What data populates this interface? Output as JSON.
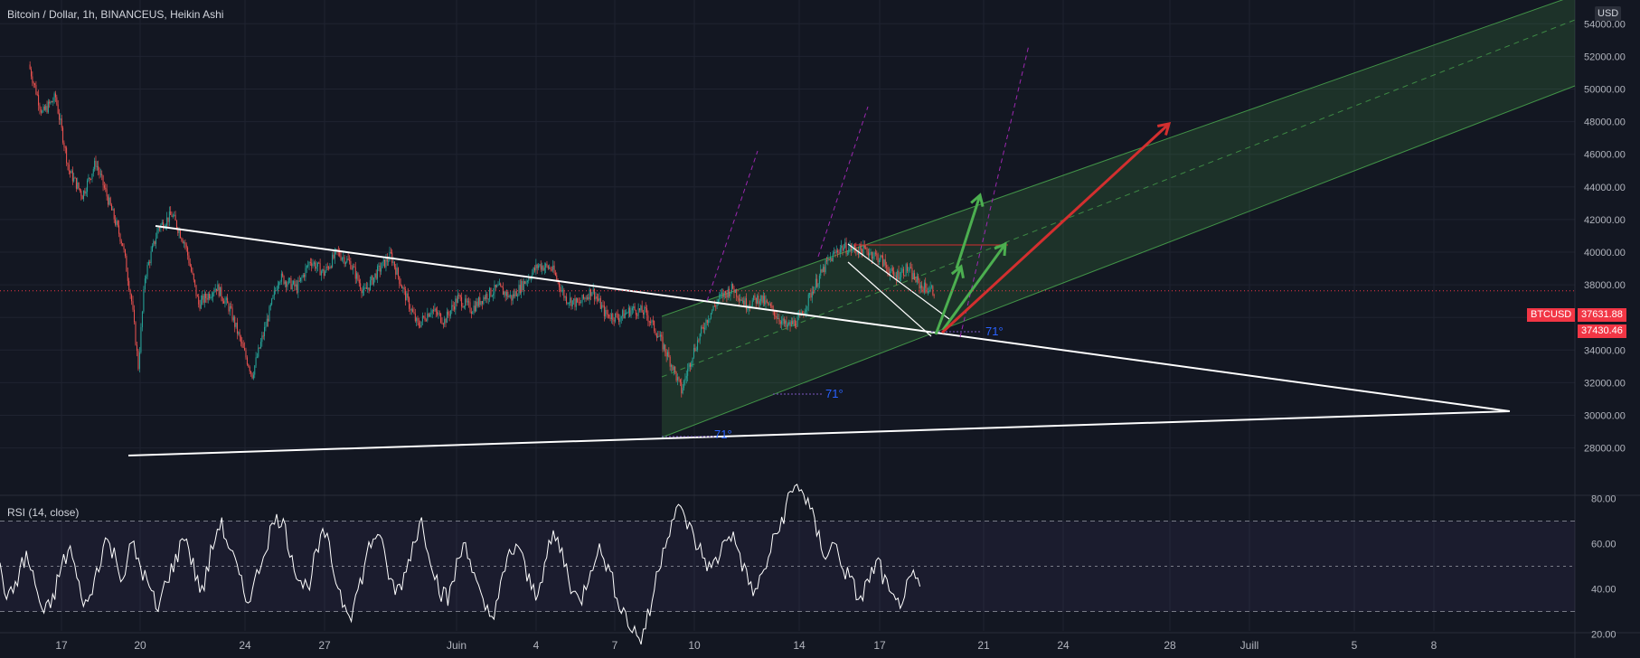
{
  "header": {
    "symbol_title": "Bitcoin / Dollar, 1h, BINANCEUS, Heikin Ashi",
    "currency": "USD"
  },
  "rsi_panel": {
    "title": "RSI (14, close)"
  },
  "price_tags": {
    "symbol": "BTCUSD",
    "last": "37631.88",
    "second": "37430.46"
  },
  "colors": {
    "background": "#131722",
    "up": "#26a69a",
    "down": "#ef5350",
    "channel": "#4caf50",
    "arrow_green": "#4caf50",
    "arrow_red": "#d32f2f",
    "trendline": "#ffffff",
    "projection": "#9c27b0",
    "rsi": "#ffffff",
    "rsi_band": "#7e57c2"
  },
  "chart_data": [
    {
      "type": "candlestick",
      "title": "Bitcoin / Dollar, 1h, BINANCEUS, Heikin Ashi",
      "x_ticks": [
        "17",
        "20",
        "24",
        "27",
        "Juin",
        "4",
        "7",
        "10",
        "14",
        "17",
        "21",
        "24",
        "28",
        "Juill",
        "5",
        "8"
      ],
      "y_ticks": [
        "28000.00",
        "30000.00",
        "32000.00",
        "34000.00",
        "36000.00",
        "38000.00",
        "40000.00",
        "42000.00",
        "44000.00",
        "46000.00",
        "48000.00",
        "50000.00",
        "52000.00",
        "54000.00"
      ],
      "ylim": [
        27800,
        54600
      ],
      "grid": true,
      "last_price": 37631.88,
      "close_path": [
        [
          "May 15 12:00",
          51500
        ],
        [
          "May 16 00:00",
          48500
        ],
        [
          "May 16 12:00",
          49500
        ],
        [
          "May 17 00:00",
          45000
        ],
        [
          "May 17 12:00",
          43500
        ],
        [
          "May 18 00:00",
          45500
        ],
        [
          "May 18 12:00",
          43000
        ],
        [
          "May 19 00:00",
          40500
        ],
        [
          "May 19 08:00",
          37000
        ],
        [
          "May 19 14:00",
          33000
        ],
        [
          "May 19 20:00",
          38500
        ],
        [
          "May 20 08:00",
          41500
        ],
        [
          "May 20 20:00",
          42300
        ],
        [
          "May 21 08:00",
          40500
        ],
        [
          "May 21 20:00",
          36800
        ],
        [
          "May 22 12:00",
          37900
        ],
        [
          "May 23 00:00",
          36500
        ],
        [
          "May 23 12:00",
          34000
        ],
        [
          "May 23 20:00",
          32500
        ],
        [
          "May 24 08:00",
          35500
        ],
        [
          "May 24 20:00",
          38500
        ],
        [
          "May 25 12:00",
          37800
        ],
        [
          "May 26 00:00",
          39500
        ],
        [
          "May 26 12:00",
          38700
        ],
        [
          "May 27 00:00",
          40000
        ],
        [
          "May 27 12:00",
          39300
        ],
        [
          "May 28 00:00",
          37500
        ],
        [
          "May 28 12:00",
          38800
        ],
        [
          "May 29 00:00",
          39800
        ],
        [
          "May 29 12:00",
          37500
        ],
        [
          "May 30 00:00",
          35500
        ],
        [
          "May 30 12:00",
          36500
        ],
        [
          "May 31 00:00",
          35800
        ],
        [
          "May 31 12:00",
          37200
        ],
        [
          "Jun 1 00:00",
          36500
        ],
        [
          "Jun 1 12:00",
          37300
        ],
        [
          "Jun 2 00:00",
          37800
        ],
        [
          "Jun 2 12:00",
          37200
        ],
        [
          "Jun 3 00:00",
          38200
        ],
        [
          "Jun 3 12:00",
          39200
        ],
        [
          "Jun 4 00:00",
          39000
        ],
        [
          "Jun 4 12:00",
          37200
        ],
        [
          "Jun 5 00:00",
          36800
        ],
        [
          "Jun 5 12:00",
          37700
        ],
        [
          "Jun 6 00:00",
          36200
        ],
        [
          "Jun 6 12:00",
          36000
        ],
        [
          "Jun 7 00:00",
          36500
        ],
        [
          "Jun 7 12:00",
          36300
        ],
        [
          "Jun 8 00:00",
          34800
        ],
        [
          "Jun 8 12:00",
          33000
        ],
        [
          "Jun 8 20:00",
          31500
        ],
        [
          "Jun 9 06:00",
          33800
        ],
        [
          "Jun 9 18:00",
          35800
        ],
        [
          "Jun 10 06:00",
          37200
        ],
        [
          "Jun 10 18:00",
          37800
        ],
        [
          "Jun 11 06:00",
          36800
        ],
        [
          "Jun 11 18:00",
          37200
        ],
        [
          "Jun 12 06:00",
          36400
        ],
        [
          "Jun 12 18:00",
          35400
        ],
        [
          "Jun 13 06:00",
          35900
        ],
        [
          "Jun 13 18:00",
          37800
        ],
        [
          "Jun 14 06:00",
          39300
        ],
        [
          "Jun 14 18:00",
          40300
        ],
        [
          "Jun 15 06:00",
          40200
        ],
        [
          "Jun 15 18:00",
          40100
        ],
        [
          "Jun 16 06:00",
          39600
        ],
        [
          "Jun 16 18:00",
          38500
        ],
        [
          "Jun 17 06:00",
          39000
        ],
        [
          "Jun 17 18:00",
          37900
        ],
        [
          "Jun 18 06:00",
          37631.88
        ]
      ]
    },
    {
      "type": "line",
      "title": "RSI (14, close)",
      "y_ticks": [
        "20.00",
        "40.00",
        "60.00",
        "80.00"
      ],
      "ylim": [
        10,
        90
      ],
      "bands": [
        30,
        50,
        70
      ],
      "series": [
        {
          "values": [
            48,
            35,
            45,
            55,
            42,
            28,
            35,
            50,
            58,
            40,
            32,
            48,
            62,
            55,
            45,
            60,
            50,
            40,
            30,
            45,
            52,
            65,
            50,
            38,
            55,
            70,
            60,
            48,
            35,
            42,
            56,
            68,
            72,
            58,
            45,
            40,
            55,
            65,
            48,
            35,
            30,
            42,
            58,
            66,
            50,
            38,
            45,
            60,
            70,
            55,
            40,
            35,
            50,
            62,
            45,
            32,
            28,
            40,
            55,
            60,
            45,
            38,
            50,
            64,
            56,
            42,
            33,
            46,
            58,
            52,
            40,
            30,
            22,
            18,
            30,
            50,
            65,
            75,
            72,
            62,
            55,
            48,
            56,
            66,
            58,
            45,
            38,
            48,
            60,
            70,
            82,
            86,
            78,
            65,
            55,
            60,
            50,
            42,
            35,
            45,
            52,
            40,
            32,
            38,
            44,
            40
          ]
        }
      ]
    }
  ],
  "annotations": {
    "angle_labels": [
      "71°",
      "71°",
      "71°"
    ]
  }
}
